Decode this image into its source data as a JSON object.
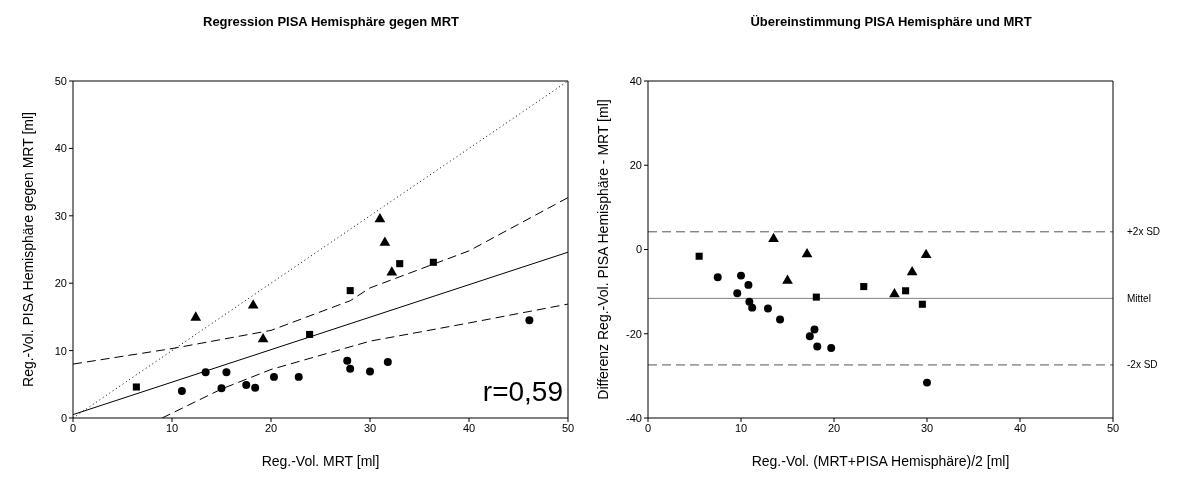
{
  "chart_data": [
    {
      "type": "scatter",
      "title": "Regression PISA Hemisphäre gegen MRT",
      "xlabel": "Reg.-Vol. MRT [ml]",
      "ylabel": "Reg.-Vol. PISA Hemisphäre gegen MRT [ml]",
      "xlim": [
        0,
        50
      ],
      "ylim": [
        0,
        50
      ],
      "xticks": [
        0,
        10,
        20,
        30,
        40,
        50
      ],
      "yticks": [
        0,
        10,
        20,
        30,
        40,
        50
      ],
      "grid": false,
      "annotations": [
        "r=0,59"
      ],
      "series": [
        {
          "type": "scatter",
          "marker": "circle",
          "color": "#000000",
          "x": [
            11.0,
            13.4,
            15.5,
            15.0,
            17.5,
            18.4,
            20.3,
            22.8,
            27.7,
            28.0,
            30.0,
            31.8,
            46.1
          ],
          "values": [
            4.0,
            6.8,
            6.8,
            4.4,
            4.9,
            4.5,
            6.1,
            6.1,
            8.5,
            7.3,
            6.9,
            8.3,
            14.5
          ]
        },
        {
          "type": "scatter",
          "marker": "square",
          "color": "#000000",
          "x": [
            6.4,
            23.9,
            28.0,
            33.0,
            36.4
          ],
          "values": [
            4.6,
            12.4,
            18.9,
            22.9,
            23.1
          ]
        },
        {
          "type": "scatter",
          "marker": "triangle",
          "color": "#000000",
          "x": [
            12.4,
            18.2,
            19.2,
            31.0,
            31.5,
            32.2
          ],
          "values": [
            14.9,
            16.7,
            11.7,
            29.5,
            26.0,
            21.6
          ]
        },
        {
          "type": "line",
          "line_style": "solid",
          "color": "#000000",
          "x": [
            0,
            50
          ],
          "values": [
            0.5,
            24.6
          ]
        },
        {
          "type": "line",
          "line_style": "dashed",
          "color": "#000000",
          "x": [
            0,
            10,
            20,
            28,
            30,
            40,
            50
          ],
          "values": [
            8.0,
            10.3,
            13.0,
            17.4,
            19.3,
            24.8,
            32.7
          ]
        },
        {
          "type": "line",
          "line_style": "dashed",
          "color": "#000000",
          "x": [
            9,
            15,
            20,
            30,
            40,
            50
          ],
          "values": [
            0,
            4.3,
            7.2,
            11.4,
            14.1,
            16.9
          ]
        },
        {
          "type": "line",
          "line_style": "dotted",
          "color": "#000000",
          "x": [
            0,
            50
          ],
          "values": [
            0,
            50
          ]
        }
      ]
    },
    {
      "type": "scatter",
      "title": "Übereinstimmung PISA Hemisphäre und MRT",
      "xlabel": "Reg.-Vol. (MRT+PISA Hemisphäre)/2 [ml]",
      "ylabel": "Differenz Reg.-Vol. PISA Hemisphäre - MRT [ml]",
      "xlim": [
        0,
        50
      ],
      "ylim": [
        -40,
        40
      ],
      "xticks": [
        0,
        10,
        20,
        30,
        40,
        50
      ],
      "yticks": [
        -40,
        -20,
        0,
        20,
        40
      ],
      "grid": false,
      "ref_lines": [
        {
          "axis": "y",
          "value": 4.2,
          "label": "+2x SD",
          "line_style": "dashed",
          "color": "#555555"
        },
        {
          "axis": "y",
          "value": -11.6,
          "label": "Mittel",
          "line_style": "solid",
          "color": "#808080"
        },
        {
          "axis": "y",
          "value": -27.4,
          "label": "-2x SD",
          "line_style": "dashed",
          "color": "#555555"
        }
      ],
      "series": [
        {
          "type": "scatter",
          "marker": "circle",
          "color": "#000000",
          "x": [
            7.5,
            10.0,
            9.6,
            10.8,
            10.9,
            11.2,
            12.9,
            14.2,
            17.9,
            17.4,
            18.2,
            19.7,
            30.0
          ],
          "values": [
            -6.6,
            -6.2,
            -10.4,
            -8.4,
            -12.4,
            -13.8,
            -14.0,
            -16.6,
            -19.0,
            -20.6,
            -23.0,
            -23.4,
            -31.6
          ]
        },
        {
          "type": "scatter",
          "marker": "square",
          "color": "#000000",
          "x": [
            5.5,
            18.1,
            23.2,
            27.7,
            29.5
          ],
          "values": [
            -1.6,
            -11.3,
            -8.8,
            -9.8,
            -13.0
          ]
        },
        {
          "type": "scatter",
          "marker": "triangle",
          "color": "#000000",
          "x": [
            13.5,
            15.0,
            17.1,
            26.5,
            28.4,
            29.9
          ],
          "values": [
            2.5,
            -7.4,
            -1.1,
            -10.6,
            -5.4,
            -1.3
          ]
        }
      ]
    }
  ]
}
